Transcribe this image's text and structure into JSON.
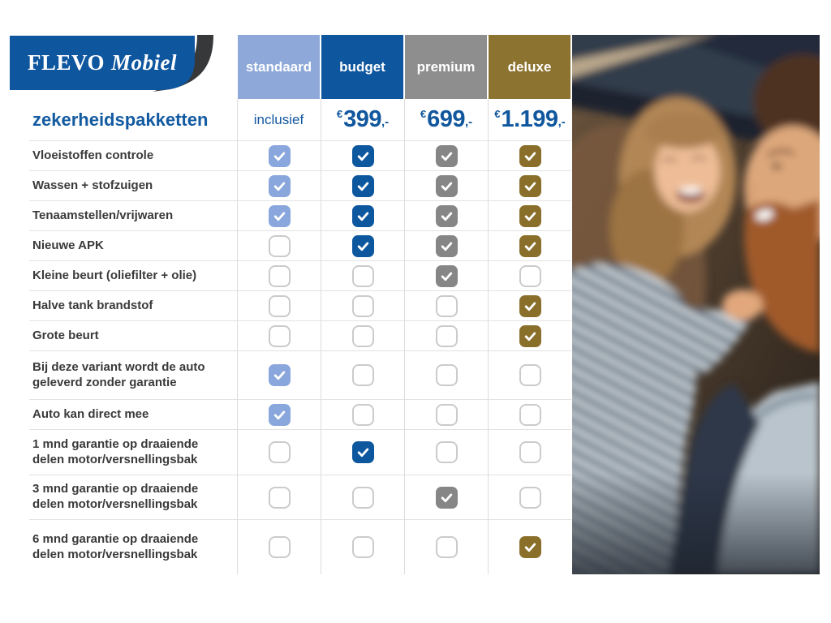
{
  "brand": {
    "name": "FLEVO",
    "suffix": "Mobiel"
  },
  "title": "zekerheidspakketten",
  "colors": {
    "brand_blue": "#0e569e",
    "swoosh_dark": "#37383a",
    "accent_text_blue": "#11579e",
    "label_text": "#3a3a3a",
    "grid_line": "#dcdcdc"
  },
  "plans": [
    {
      "name": "standaard",
      "header_color": "#8ea8d9",
      "check_color": "#89a6dd",
      "price_text": "inclusief",
      "price_currency": "",
      "price_amount": "",
      "price_suffix": ""
    },
    {
      "name": "budget",
      "header_color": "#0e579f",
      "check_color": "#0d579f",
      "price_text": "",
      "price_currency": "€",
      "price_amount": "399",
      "price_suffix": ",-"
    },
    {
      "name": "premium",
      "header_color": "#8e8e8e",
      "check_color": "#868686",
      "price_text": "",
      "price_currency": "€",
      "price_amount": "699",
      "price_suffix": ",-"
    },
    {
      "name": "deluxe",
      "header_color": "#8d7330",
      "check_color": "#8a6f2a",
      "price_text": "",
      "price_currency": "€",
      "price_amount": "1.199",
      "price_suffix": ",-"
    }
  ],
  "features": [
    {
      "label": "Vloeistoffen controle",
      "checks": [
        true,
        true,
        true,
        true
      ]
    },
    {
      "label": "Wassen + stofzuigen",
      "checks": [
        true,
        true,
        true,
        true
      ]
    },
    {
      "label": "Tenaamstellen/vrijwaren",
      "checks": [
        true,
        true,
        true,
        true
      ]
    },
    {
      "label": "Nieuwe APK",
      "checks": [
        false,
        true,
        true,
        true
      ]
    },
    {
      "label": "Kleine beurt (oliefilter + olie)",
      "checks": [
        false,
        false,
        true,
        false
      ]
    },
    {
      "label": "Halve tank brandstof",
      "checks": [
        false,
        false,
        false,
        true
      ]
    },
    {
      "label": "Grote beurt",
      "checks": [
        false,
        false,
        false,
        true
      ]
    },
    {
      "label": "Bij deze variant wordt de auto geleverd zonder garantie",
      "checks": [
        true,
        false,
        false,
        false
      ]
    },
    {
      "label": "Auto kan direct mee",
      "checks": [
        true,
        false,
        false,
        false
      ]
    },
    {
      "label": "1 mnd garantie op draaiende delen motor/versnellingsbak",
      "checks": [
        false,
        true,
        false,
        false
      ]
    },
    {
      "label": "3 mnd garantie op draaiende delen motor/versnellingsbak",
      "checks": [
        false,
        false,
        true,
        false
      ]
    },
    {
      "label": "6 mnd garantie op draaiende delen motor/versnellingsbak",
      "checks": [
        false,
        false,
        false,
        true
      ]
    }
  ]
}
